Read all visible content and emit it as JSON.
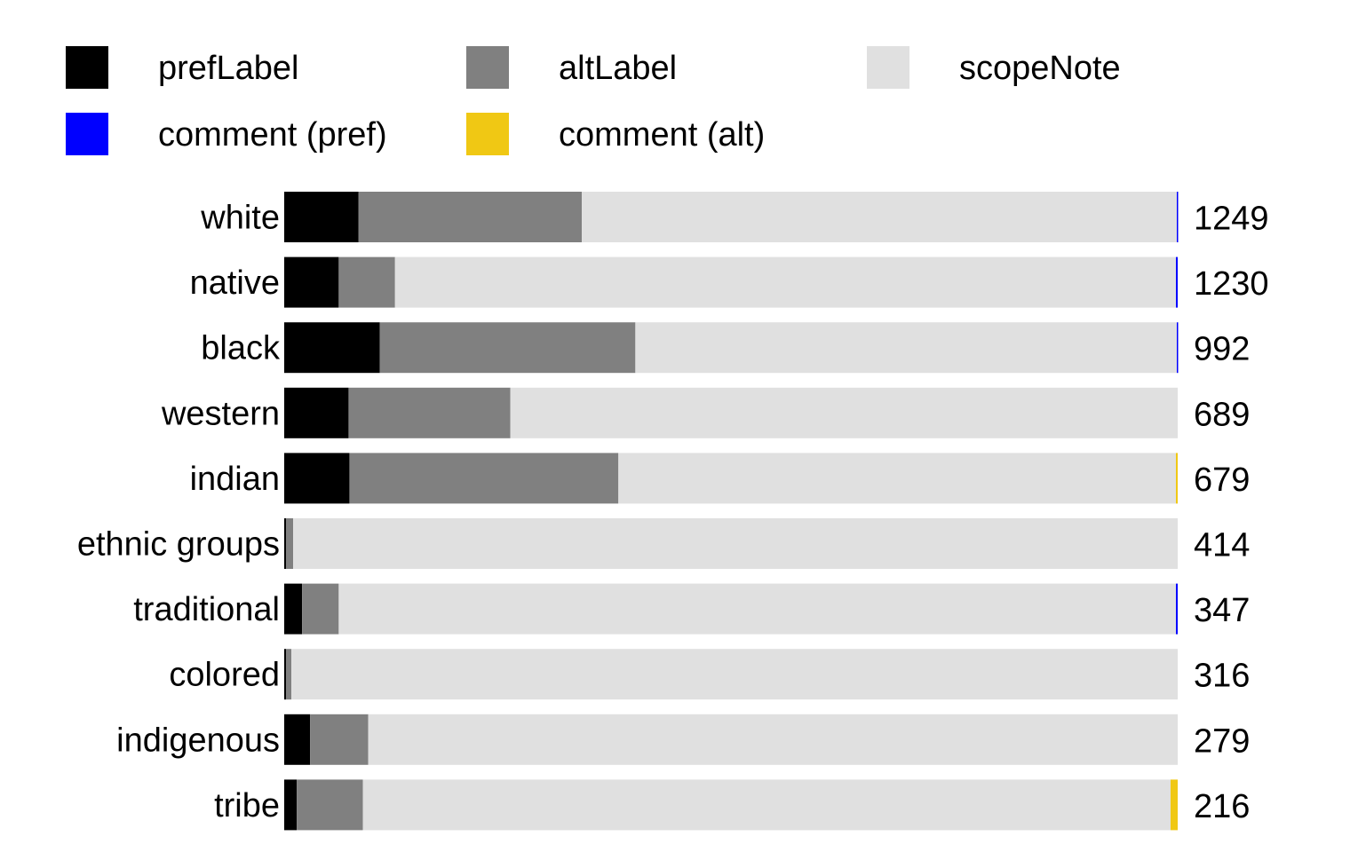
{
  "chart_data": {
    "type": "bar",
    "orientation": "horizontal",
    "stacked": true,
    "normalized": true,
    "title": "",
    "xlabel": "",
    "ylabel": "",
    "legend_placement": "top",
    "grid": false,
    "categories": [
      "white",
      "native",
      "black",
      "western",
      "indian",
      "ethnic groups",
      "traditional",
      "colored",
      "indigenous",
      "tribe"
    ],
    "totals": [
      "1249",
      "1230",
      "992",
      "689",
      "679",
      "414",
      "347",
      "316",
      "279",
      "216"
    ],
    "series": [
      {
        "name": "prefLabel",
        "color": "#000000",
        "values": [
          0.083,
          0.061,
          0.107,
          0.072,
          0.073,
          0.002,
          0.02,
          0.002,
          0.029,
          0.014
        ]
      },
      {
        "name": "altLabel",
        "color": "#808080",
        "values": [
          0.25,
          0.063,
          0.286,
          0.181,
          0.301,
          0.008,
          0.041,
          0.006,
          0.065,
          0.074
        ]
      },
      {
        "name": "scopeNote",
        "color": "#e0e0e0",
        "values": [
          0.666,
          0.874,
          0.606,
          0.747,
          0.624,
          0.99,
          0.937,
          0.992,
          0.906,
          0.904
        ]
      },
      {
        "name": "comment (pref)",
        "color": "#0000ff",
        "values": [
          0.001,
          0.002,
          0.001,
          0.0,
          0.0,
          0.0,
          0.002,
          0.0,
          0.0,
          0.0
        ]
      },
      {
        "name": "comment (alt)",
        "color": "#f0c814",
        "values": [
          0.0,
          0.0,
          0.0,
          0.0,
          0.002,
          0.0,
          0.0,
          0.0,
          0.0,
          0.008
        ]
      }
    ]
  }
}
